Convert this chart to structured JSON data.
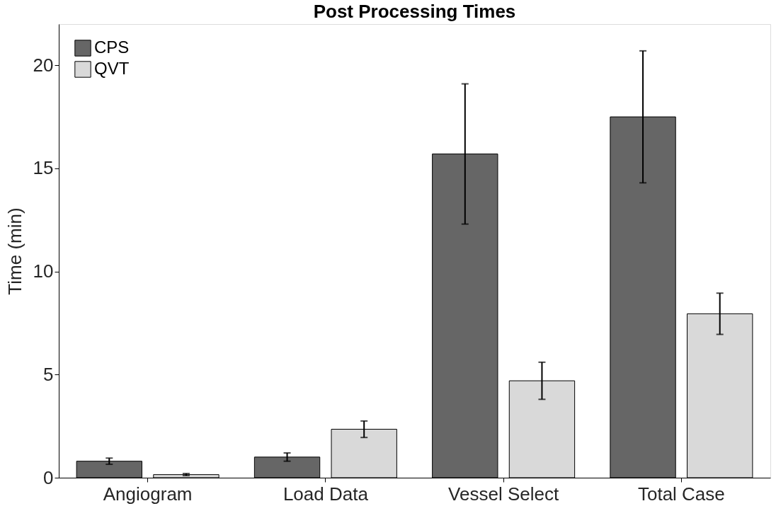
{
  "chart_data": {
    "type": "bar",
    "title": "Post Processing Times",
    "ylabel": "Time (min)",
    "categories": [
      "Angiogram",
      "Load Data",
      "Vessel Select",
      "Total Case"
    ],
    "series": [
      {
        "name": "CPS",
        "color": "#666666",
        "values": [
          0.8,
          1.0,
          15.7,
          17.5
        ],
        "errors": [
          0.15,
          0.2,
          3.4,
          3.2
        ]
      },
      {
        "name": "QVT",
        "color": "#d9d9d9",
        "values": [
          0.15,
          2.35,
          4.7,
          7.95
        ],
        "errors": [
          0.05,
          0.4,
          0.9,
          1.0
        ]
      }
    ],
    "ylim": [
      0,
      22
    ],
    "yticks": [
      0,
      5,
      10,
      15,
      20
    ],
    "grid": false,
    "legend": "top left"
  }
}
